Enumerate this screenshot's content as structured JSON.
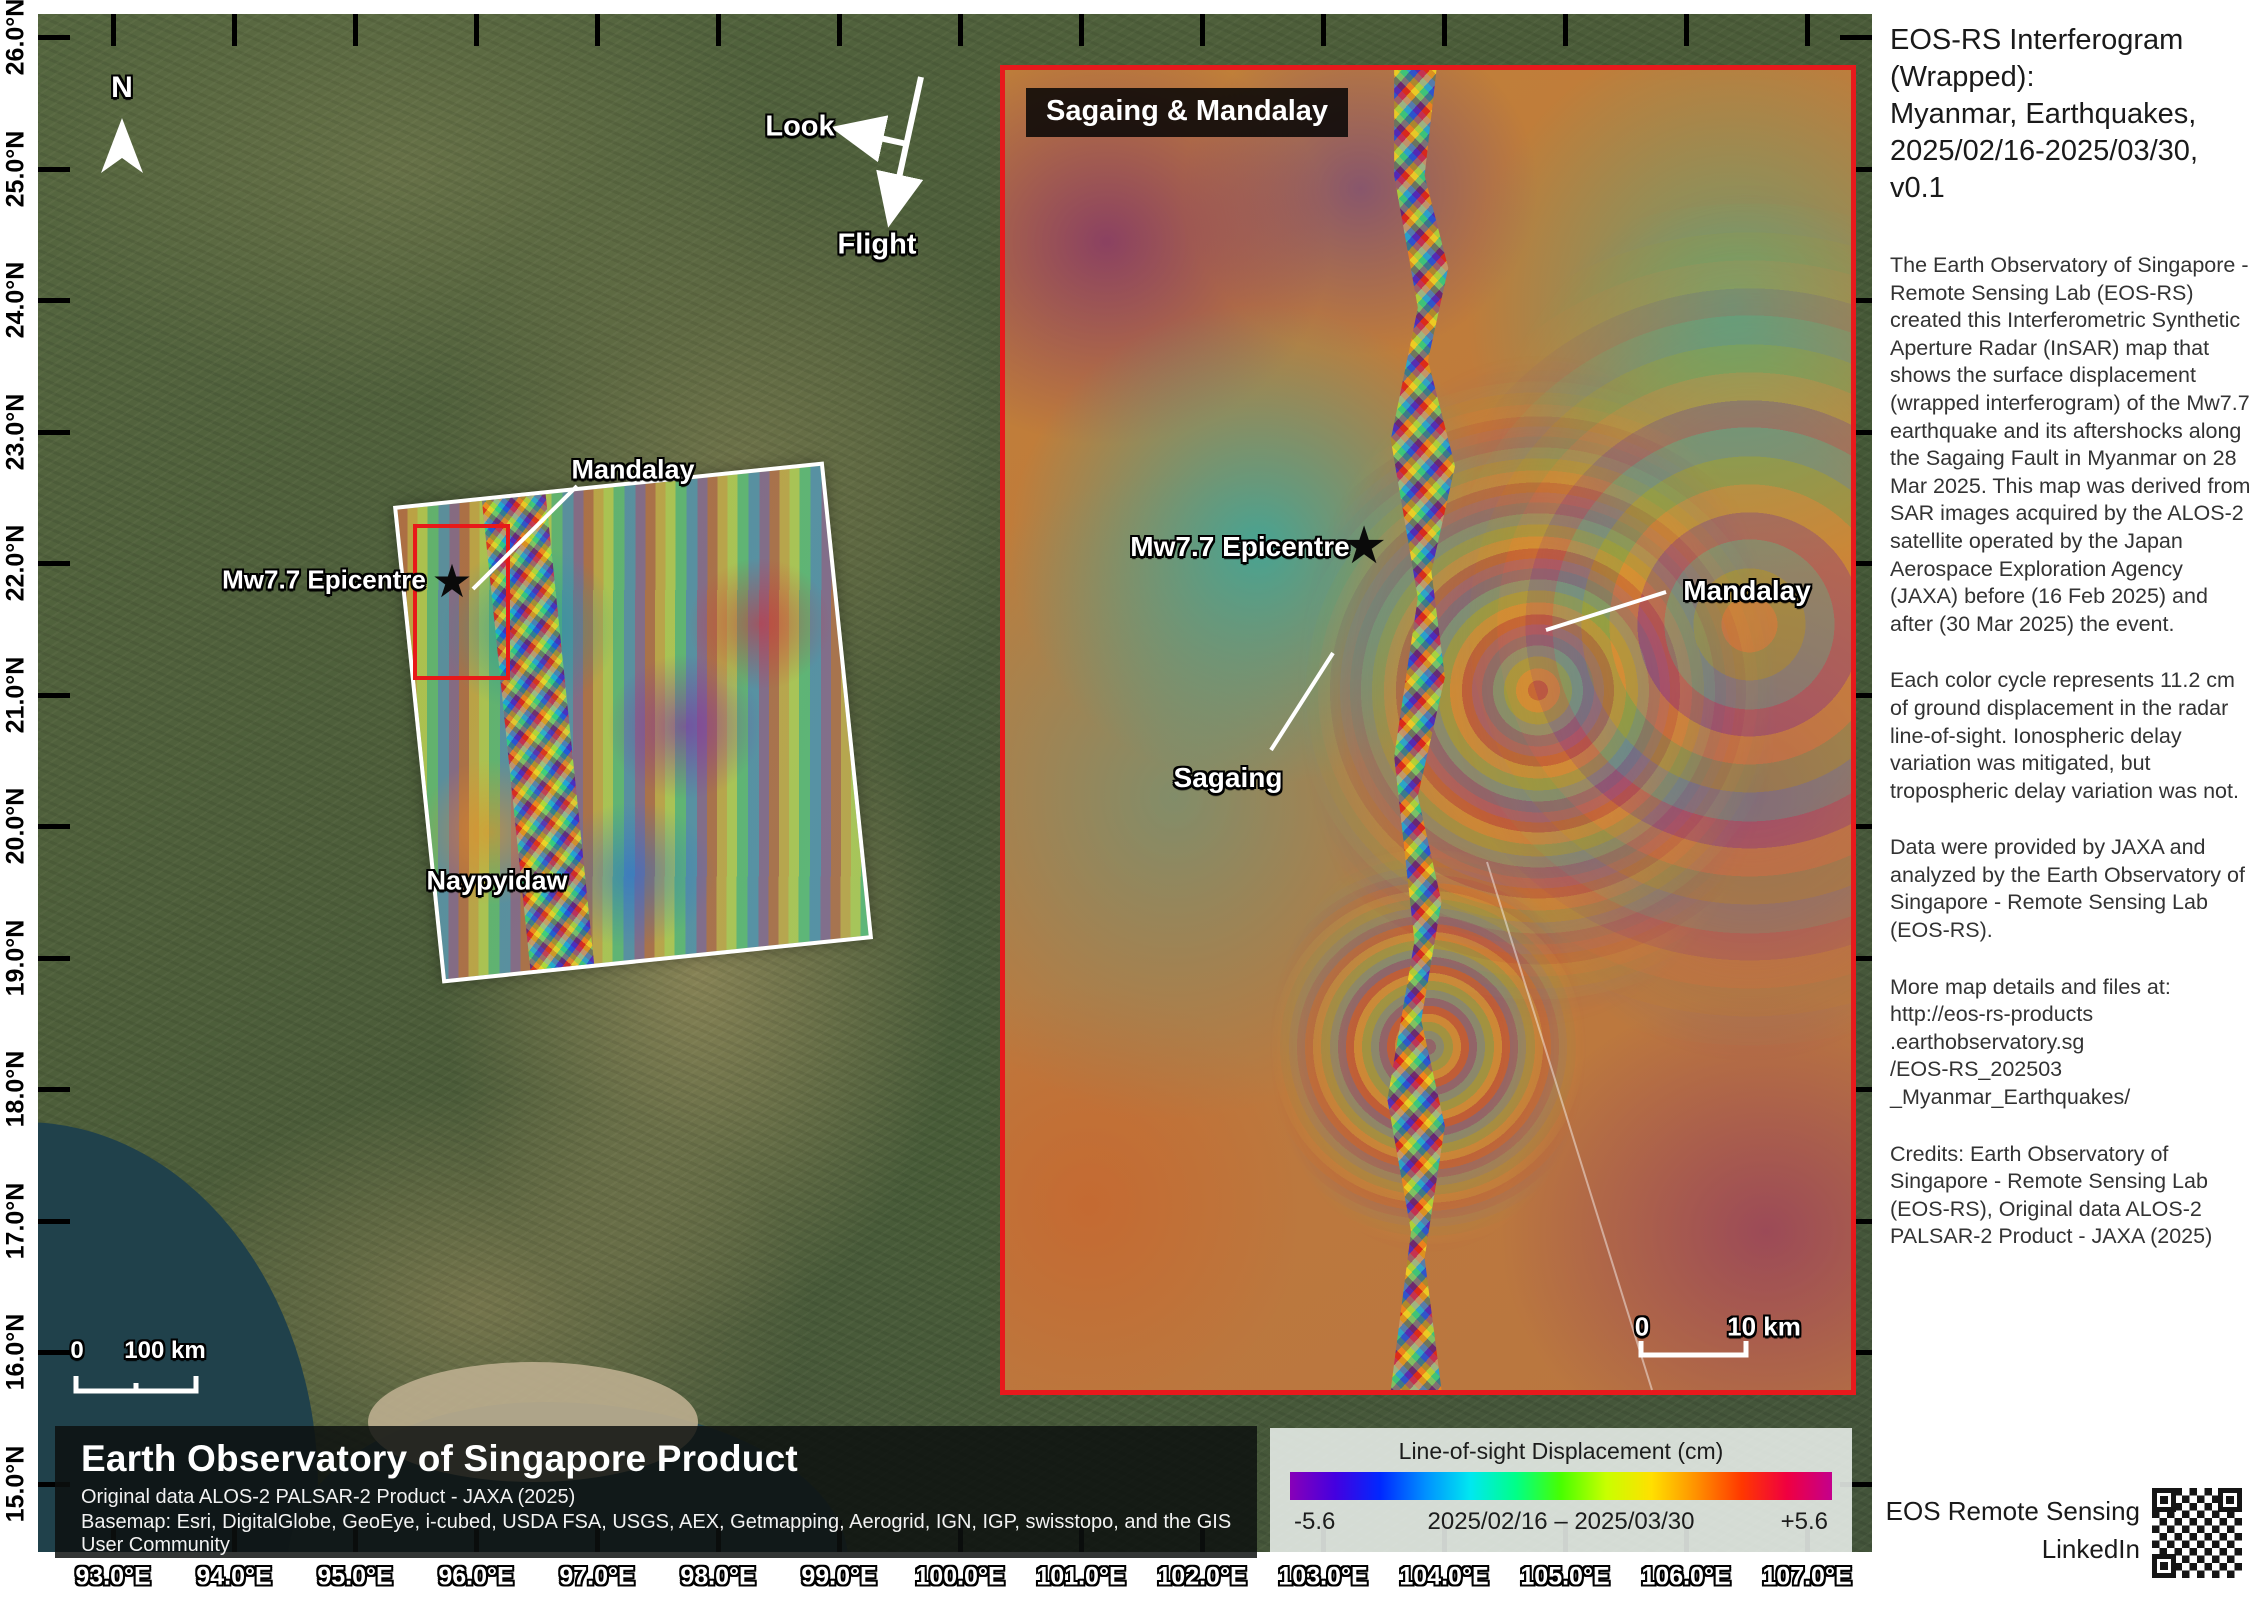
{
  "map": {
    "north_label": "N",
    "look_label": "Look",
    "flight_label": "Flight",
    "labels": {
      "mandalay": "Mandalay",
      "epicentre": "Mw7.7 Epicentre",
      "naypyidaw": "Naypyidaw",
      "epicentre_star": "★"
    },
    "scalebar": {
      "zero": "0",
      "distance": "100 km"
    },
    "lat_ticks": [
      "26.0°N",
      "25.0°N",
      "24.0°N",
      "23.0°N",
      "22.0°N",
      "21.0°N",
      "20.0°N",
      "19.0°N",
      "18.0°N",
      "17.0°N",
      "16.0°N",
      "15.0°N"
    ],
    "lon_ticks": [
      "93.0°E",
      "94.0°E",
      "95.0°E",
      "96.0°E",
      "97.0°E",
      "98.0°E",
      "99.0°E",
      "100.0°E",
      "101.0°E",
      "102.0°E",
      "103.0°E",
      "104.0°E",
      "105.0°E",
      "106.0°E",
      "107.0°E"
    ]
  },
  "inset": {
    "title": "Sagaing & Mandalay",
    "labels": {
      "epicentre": "Mw7.7 Epicentre",
      "mandalay": "Mandalay",
      "sagaing": "Sagaing",
      "epicentre_star": "★"
    },
    "scalebar": {
      "zero": "0",
      "distance": "10 km"
    }
  },
  "banner": {
    "title": "Earth Observatory of Singapore Product",
    "credit_line": "Original data ALOS-2 PALSAR-2 Product - JAXA (2025)",
    "basemap_line": "Basemap: Esri, DigitalGlobe, GeoEye, i-cubed, USDA FSA, USGS, AEX, Getmapping, Aerogrid, IGN, IGP, swisstopo, and the GIS User Community"
  },
  "legend": {
    "title": "Line-of-sight Displacement (cm)",
    "min_label": "-5.6",
    "max_label": "+5.6",
    "date_range": "2025/02/16 – 2025/03/30",
    "colormap": [
      "#8800b8",
      "#4400e0",
      "#0028ff",
      "#0090ff",
      "#00e8f0",
      "#00ff88",
      "#48ff00",
      "#c8ff00",
      "#ffe000",
      "#ff9000",
      "#ff3800",
      "#f00040",
      "#c4008c"
    ]
  },
  "sidebar": {
    "title": "EOS-RS Interferogram\n(Wrapped):\nMyanmar, Earthquakes,\n2025/02/16-2025/03/30,\nv0.1",
    "paragraphs": [
      "The Earth Observatory of Singapore - Remote Sensing Lab (EOS-RS) created this Interferometric Synthetic Aperture Radar (InSAR) map that shows the surface displacement (wrapped interferogram) of the Mw7.7 earthquake and its aftershocks along the Sagaing Fault in Myanmar on 28 Mar 2025. This map was derived from SAR images acquired by the ALOS-2 satellite operated by the Japan Aerospace Exploration Agency (JAXA) before (16 Feb 2025) and after (30 Mar 2025) the event.",
      "Each color cycle represents 11.2 cm of ground displacement in the radar line-of-sight. Ionospheric delay variation was mitigated, but tropospheric delay variation was not.",
      "Data were provided by JAXA and analyzed by the Earth Observatory of Singapore - Remote Sensing Lab (EOS-RS).",
      "More map details and files at:\nhttp://eos-rs-products\n.earthobservatory.sg\n/EOS-RS_202503\n_Myanmar_Earthquakes/",
      "Credits: Earth Observatory of Singapore - Remote Sensing Lab (EOS-RS), Original data ALOS-2 PALSAR-2 Product - JAXA (2025)"
    ],
    "footer": "EOS Remote Sensing\nLinkedIn"
  }
}
